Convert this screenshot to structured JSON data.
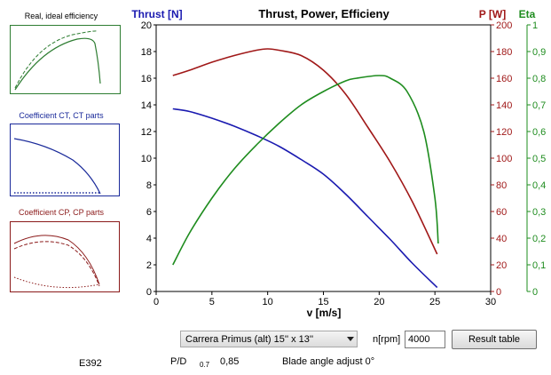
{
  "thumbnails": [
    {
      "title": "Real, ideal efficiency",
      "color": "#2e7d32"
    },
    {
      "title": "Coefficient CT, CT parts",
      "color": "#1a2a9a"
    },
    {
      "title": "Coefficient CP, CP parts",
      "color": "#8b1a1a"
    }
  ],
  "chart_data": {
    "type": "line",
    "title": "Thrust, Power, Efficieny",
    "xlabel": "v [m/s]",
    "xlim": [
      0,
      30
    ],
    "x_ticks": [
      "0",
      "5",
      "10",
      "15",
      "20",
      "25",
      "30"
    ],
    "axes": [
      {
        "label": "Thrust [N]",
        "ylim": [
          0,
          20
        ],
        "color": "#1a1ab0",
        "ticks": [
          "0",
          "2",
          "4",
          "6",
          "8",
          "10",
          "12",
          "14",
          "16",
          "18",
          "20"
        ]
      },
      {
        "label": "P [W]",
        "ylim": [
          0,
          200
        ],
        "color": "#a01818",
        "ticks": [
          "0",
          "20",
          "40",
          "60",
          "80",
          "100",
          "120",
          "140",
          "160",
          "180",
          "200"
        ]
      },
      {
        "label": "Eta",
        "ylim": [
          0,
          1
        ],
        "color": "#1e8c1e",
        "ticks": [
          "0",
          "0,1",
          "0,2",
          "0,3",
          "0,4",
          "0,5",
          "0,6",
          "0,7",
          "0,8",
          "0,9",
          "1"
        ]
      }
    ],
    "series": [
      {
        "axis": 0,
        "color": "#1a1ab0",
        "x": [
          1.5,
          3,
          5,
          7,
          9,
          11,
          13,
          15,
          17,
          19,
          21,
          23,
          25.2
        ],
        "y": [
          13.7,
          13.5,
          13.0,
          12.4,
          11.7,
          10.9,
          9.9,
          8.8,
          7.3,
          5.6,
          3.9,
          2.1,
          0.3
        ]
      },
      {
        "axis": 1,
        "color": "#a01818",
        "x": [
          1.5,
          3,
          5,
          7,
          9,
          10,
          11,
          13,
          15,
          17,
          19,
          21,
          23,
          25.2
        ],
        "y": [
          162,
          166,
          172,
          177,
          181,
          182,
          181,
          177,
          166,
          148,
          123,
          97,
          67,
          28
        ]
      },
      {
        "axis": 2,
        "color": "#1e8c1e",
        "x": [
          1.5,
          3,
          5,
          7,
          9,
          11,
          13,
          15,
          17,
          18,
          20,
          21,
          22.5,
          24,
          25,
          25.3
        ],
        "y": [
          0.1,
          0.22,
          0.35,
          0.46,
          0.55,
          0.63,
          0.7,
          0.75,
          0.79,
          0.8,
          0.81,
          0.8,
          0.75,
          0.6,
          0.35,
          0.18
        ]
      }
    ]
  },
  "controls": {
    "propeller_select": "Carrera Primus (alt) 15'' x 13''",
    "rpm_label": "n[rpm]",
    "rpm_value": "4000",
    "result_button": "Result table"
  },
  "footer": {
    "model": "E392",
    "pd_label": "P/D",
    "pd_subscript": "0.7",
    "pd_value": "0,85",
    "blade_angle": "Blade angle adjust 0°"
  }
}
